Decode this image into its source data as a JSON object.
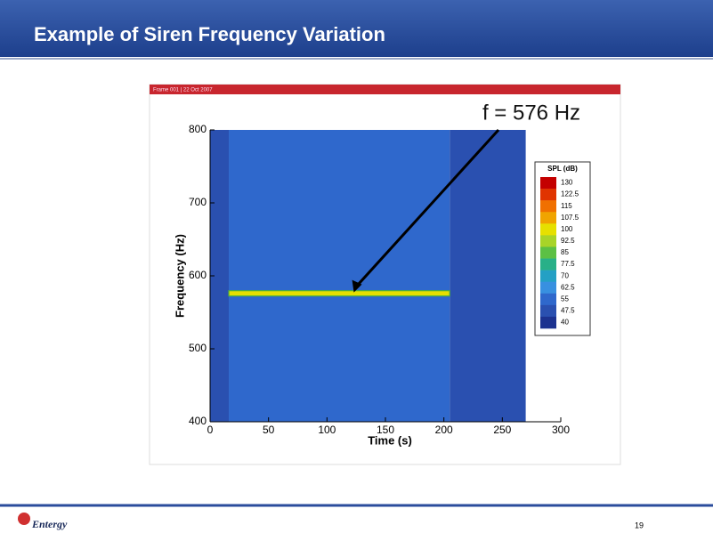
{
  "slide": {
    "title": "Example of Siren Frequency Variation",
    "logo": "Entergy",
    "page_number": "19"
  },
  "chart_data": {
    "type": "spectrogram",
    "header": "Frame 001 | 22 Oct 2007",
    "annotation": "f = 576 Hz",
    "x_label": "Time (s)",
    "y_label": "Frequency (Hz)",
    "xlim": [
      0,
      300
    ],
    "xticks": [
      0,
      50,
      100,
      150,
      200,
      250,
      300
    ],
    "ylim": [
      400,
      800
    ],
    "yticks": [
      400,
      500,
      600,
      700,
      800
    ],
    "regions": [
      {
        "time": [
          0,
          16
        ],
        "spl": 47.5
      },
      {
        "time": [
          16,
          205
        ],
        "spl": 55
      },
      {
        "time": [
          205,
          270
        ],
        "spl": 47.5
      }
    ],
    "tone": {
      "frequency": 576,
      "time": [
        16,
        205
      ],
      "spl": 100
    },
    "colorbar": {
      "title": "SPL (dB)",
      "ticks": [
        130,
        122.5,
        115,
        107.5,
        100,
        92.5,
        85,
        77.5,
        70,
        62.5,
        55,
        47.5,
        40
      ],
      "colors": [
        "#c40000",
        "#e03400",
        "#f07000",
        "#f0a400",
        "#e6e000",
        "#a8d428",
        "#5cc044",
        "#28b088",
        "#24a0c4",
        "#3890e0",
        "#2f68cc",
        "#2a50b0",
        "#1c3290"
      ]
    }
  }
}
